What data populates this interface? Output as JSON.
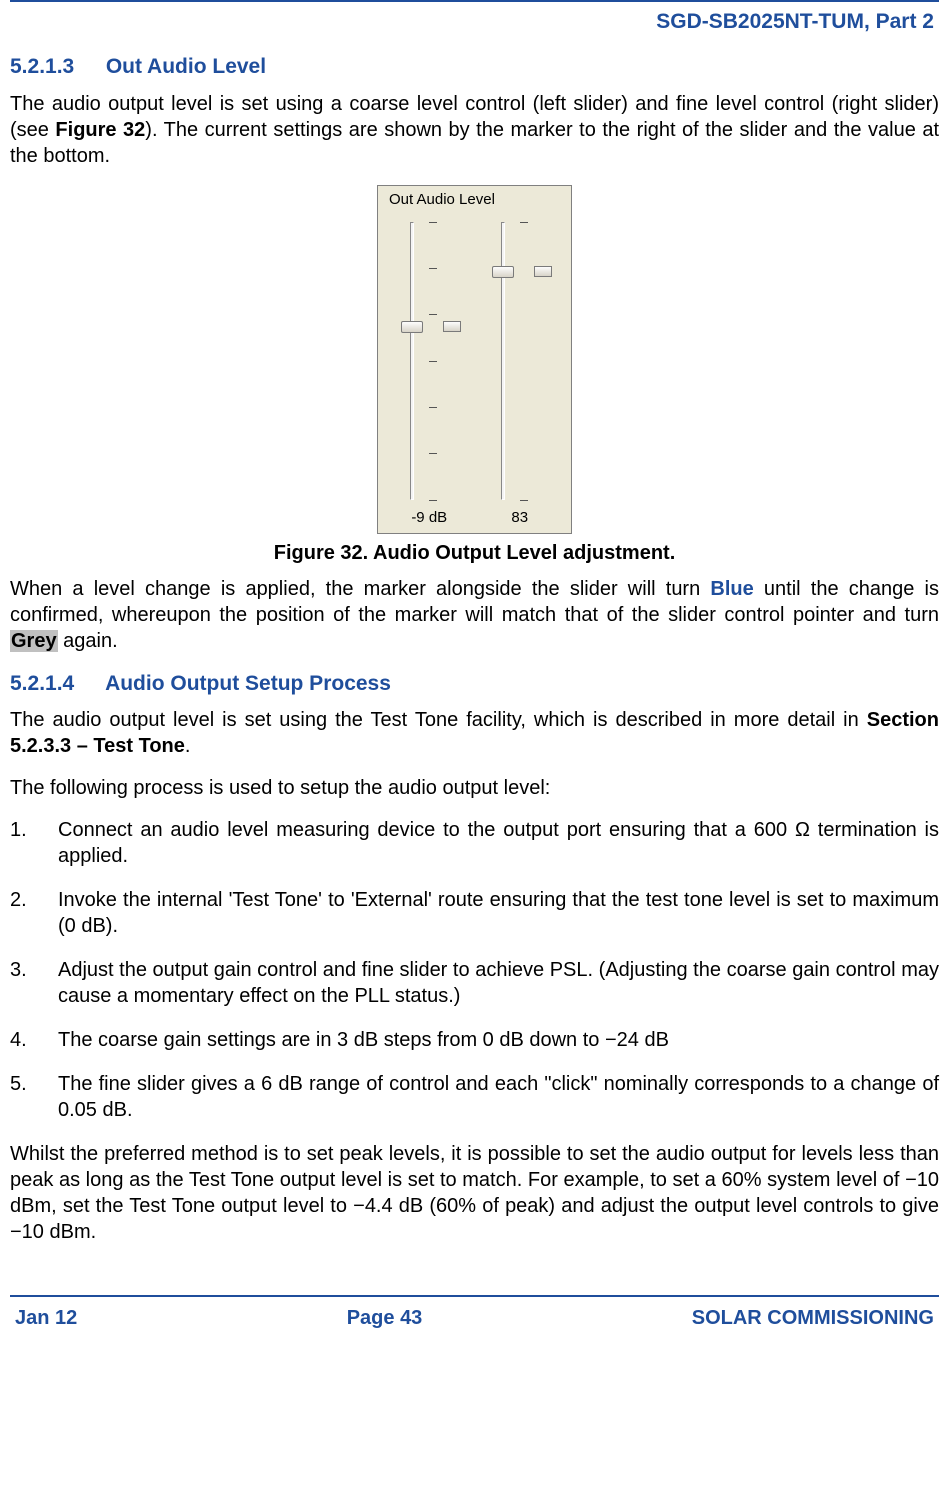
{
  "doc": {
    "header_right": "SGD-SB2025NT-TUM, Part 2",
    "footer_left": "Jan 12",
    "footer_center": "Page 43",
    "footer_right": "SOLAR COMMISSIONING",
    "colors": {
      "accent": "#1f4e9c",
      "grey_highlight": "#c0c0c0",
      "panel_bg": "#ece9d8"
    }
  },
  "sections": {
    "s1": {
      "num": "5.2.1.3",
      "title": "Out Audio Level"
    },
    "s2": {
      "num": "5.2.1.4",
      "title": "Audio Output Setup Process"
    }
  },
  "para": {
    "p1a": "The audio output level is set using a coarse level control (left slider) and fine level control (right slider) (see ",
    "p1b": "Figure 32",
    "p1c": ").  The current settings are shown by the marker to the right of the slider and the value at the bottom.",
    "figcap": "Figure 32.  Audio Output Level adjustment.",
    "p2a": "When a level change is applied, the marker alongside the slider will turn ",
    "p2blue": "Blue",
    "p2b": " until the change is confirmed, whereupon the position of the marker will match that of the slider control pointer and turn ",
    "p2grey": "Grey",
    "p2c": " again.",
    "p3a": "The audio output level is set using the Test Tone facility, which is described in more detail in ",
    "p3b": "Section 5.2.3.3 – Test Tone",
    "p3c": ".",
    "p4": "The following process is used to setup the audio output level:",
    "p5": "Whilst the preferred method is to set peak levels, it is possible to set the audio output for levels less than peak as long as the Test Tone output level is set to match.  For example, to set a 60% system level of −10 dBm, set the Test Tone output level to −4.4 dB (60% of peak) and adjust the output level controls to give −10 dBm."
  },
  "steps": [
    {
      "n": "1.",
      "t": "Connect an audio level measuring device to the output port ensuring that a 600 Ω termination is applied."
    },
    {
      "n": "2.",
      "t": "Invoke the internal 'Test Tone' to 'External' route ensuring that the test tone level is set to maximum (0 dB)."
    },
    {
      "n": "3.",
      "t": "Adjust the output gain control and fine slider to achieve PSL.  (Adjusting the coarse gain control may cause a momentary effect on the PLL status.)"
    },
    {
      "n": "4.",
      "t": "The coarse gain settings are in 3 dB steps from 0 dB down to −24 dB"
    },
    {
      "n": "5.",
      "t": "The fine slider gives a 6 dB range of control and each \"click\" nominally corresponds to a change of 0.05 dB."
    }
  ],
  "figure32": {
    "group_label": "Out Audio Level",
    "coarse": {
      "value_label": "-9 dB",
      "tick_count": 7,
      "thumb_pos_pct": 38,
      "marker_pos_pct": 38
    },
    "fine": {
      "value_label": "83",
      "tick_count": 2,
      "thumb_pos_pct": 18,
      "marker_pos_pct": 18
    }
  }
}
